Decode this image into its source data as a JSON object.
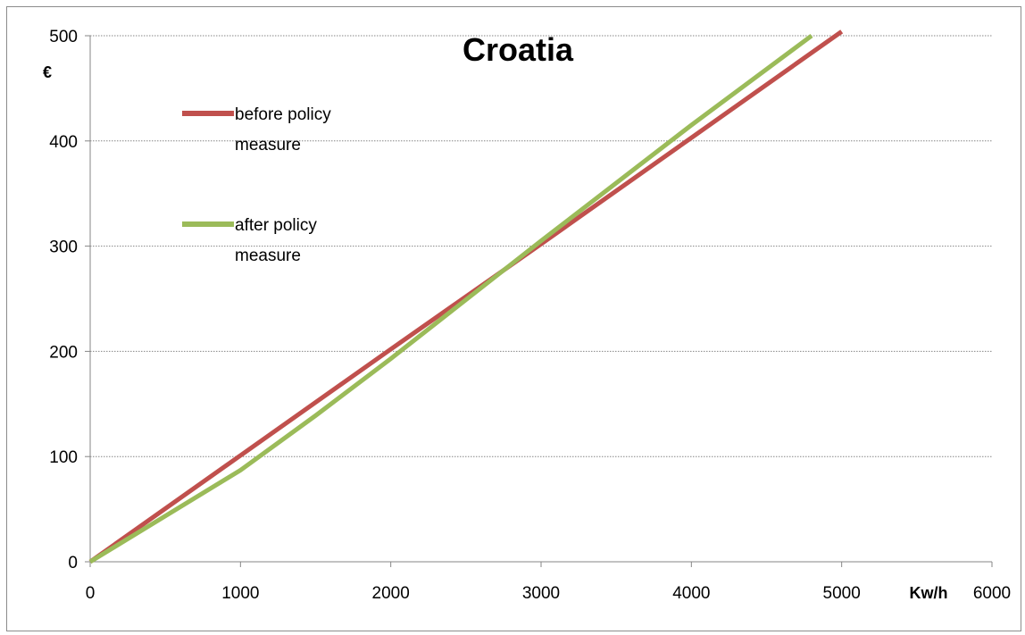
{
  "chart_data": {
    "type": "line",
    "title": "Croatia",
    "xlabel": "Kw/h",
    "ylabel": "€",
    "xlim": [
      0,
      6000
    ],
    "ylim": [
      0,
      500
    ],
    "x_ticks": [
      0,
      1000,
      2000,
      3000,
      4000,
      5000,
      6000
    ],
    "y_ticks": [
      0,
      100,
      200,
      300,
      400,
      500
    ],
    "grid": "horizontal dotted",
    "legend_position": "upper-left",
    "series": [
      {
        "name": "before policy measure",
        "name_lines": [
          "before policy",
          "measure"
        ],
        "color": "#c0504d",
        "x": [
          0,
          1000,
          2000,
          3000,
          4000,
          5000
        ],
        "y": [
          0,
          101,
          202,
          302,
          403,
          504
        ]
      },
      {
        "name": "after policy measure",
        "name_lines": [
          "after policy",
          "measure"
        ],
        "color": "#9bbb59",
        "x": [
          0,
          1000,
          1500,
          2000,
          3000,
          4000,
          4800
        ],
        "y": [
          0,
          87,
          139,
          193,
          305,
          415,
          500
        ]
      }
    ]
  }
}
